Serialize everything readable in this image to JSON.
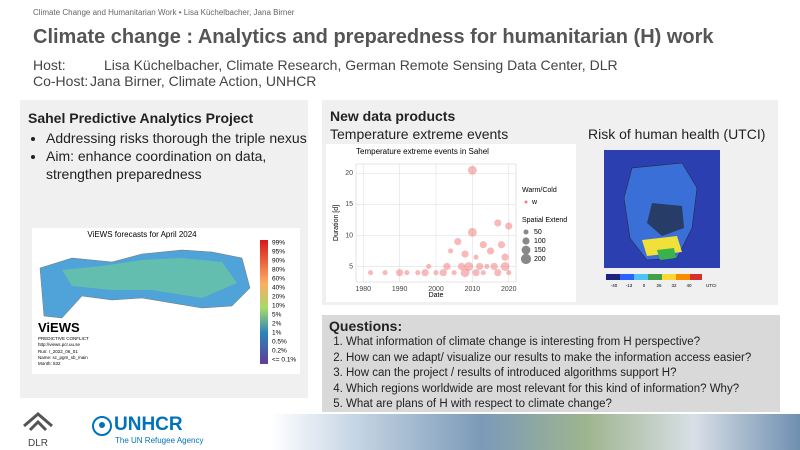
{
  "header": {
    "topline": "Climate Change and Humanitarian Work • Lisa Küchelbacher, Jana Birner",
    "title": "Climate change : Analytics and preparedness for humanitarian (H) work",
    "host_label": "Host:",
    "host": "Lisa Küchelbacher, Climate Research, German Remote Sensing Data Center, DLR",
    "cohost_label": "Co-Host:",
    "cohost": "Jana Birner, Climate Action, UNHCR"
  },
  "left_panel": {
    "title": "Sahel Predictive Analytics Project",
    "bullets": [
      "Addressing risks thorough the triple nexus",
      "Aim: enhance coordination on data, strengthen preparedness"
    ],
    "map": {
      "title": "ViEWS forecasts for April 2024",
      "legend": [
        "99%",
        "95%",
        "90%",
        "80%",
        "60%",
        "40%",
        "20%",
        "10%",
        "5%",
        "2%",
        "1%",
        "0.5%",
        "0.2%",
        "<= 0.1%"
      ],
      "brand": "ViEWS",
      "brand_sub": "PREDICTIVE CONFLICT",
      "url": "http://views.pcr.uu.se",
      "run": "Run: r_2022_06_01",
      "name": "Name: sc_pgm_sb_main",
      "month": "Month: 532"
    }
  },
  "right_panel": {
    "title": "New data products",
    "sub1": "Temperature extreme events",
    "sub2": "Risk of human health (UTCI)",
    "scatter": {
      "title": "Temperature extreme events in Sahel",
      "x_label": "Date",
      "y_label": "Duration [d]",
      "xlim": [
        1978,
        2022
      ],
      "ylim": [
        2.5,
        21.5
      ],
      "xticks": [
        1980,
        1990,
        2000,
        2010,
        2020
      ],
      "yticks": [
        5,
        10,
        15,
        20
      ],
      "legend_color_title": "Warm/Cold",
      "legend_color": "w",
      "legend_size_title": "Spatial Extend",
      "legend_sizes": [
        50,
        100,
        150,
        200
      ],
      "x": [
        2010,
        2017,
        2020,
        2010,
        2006,
        2013,
        2018,
        2004,
        2015,
        2008,
        2011,
        2019,
        1998,
        2003,
        2007,
        2009,
        2012,
        2014,
        2016,
        2019,
        1982,
        1986,
        1990,
        1992,
        1995,
        1997,
        2000,
        2002,
        2005,
        2008,
        2011,
        2013,
        2017,
        2020
      ],
      "y": [
        20.5,
        12,
        11.5,
        10.5,
        9,
        8.5,
        8.5,
        7.5,
        7.5,
        7,
        6.5,
        6.5,
        5,
        5,
        5,
        5,
        5,
        5,
        5,
        5,
        4,
        4,
        4,
        4,
        4,
        4,
        4,
        4,
        4,
        4,
        4,
        4,
        4,
        4
      ],
      "size": [
        150,
        100,
        100,
        150,
        100,
        100,
        100,
        50,
        100,
        100,
        50,
        100,
        50,
        100,
        100,
        150,
        100,
        50,
        100,
        150,
        50,
        50,
        100,
        50,
        50,
        100,
        50,
        100,
        50,
        150,
        100,
        50,
        100,
        50
      ]
    },
    "utci": {
      "colorbar_labels": [
        "-40",
        "-13",
        "0",
        "26",
        "32",
        "40"
      ],
      "unit": "UTCI"
    }
  },
  "questions": {
    "title": "Questions:",
    "items": [
      "What information of climate change is interesting from H perspective?",
      "How can we adapt/ visualize our results to make the information access easier?",
      "How can the project / results of introduced algorithms support H?",
      "Which regions worldwide are most relevant for this kind of information? Why?",
      "What are plans of H with respect to climate change?"
    ]
  },
  "footer": {
    "dlr": "DLR",
    "unhcr": "UNHCR",
    "unhcr_sub": "The UN Refugee Agency"
  }
}
